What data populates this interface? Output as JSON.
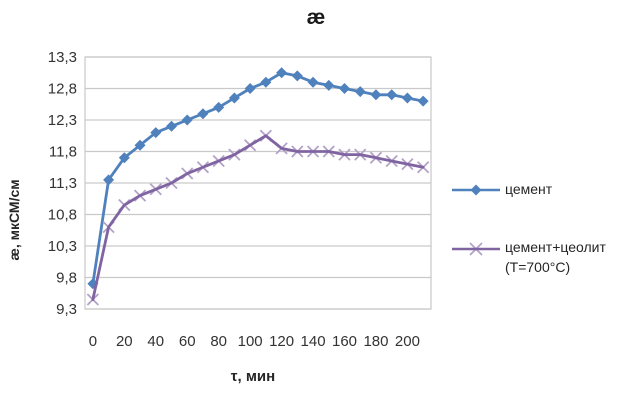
{
  "title": "æ",
  "chart_data": {
    "type": "line",
    "title": "æ",
    "grid": true,
    "legend_position": "right",
    "x_axis": {
      "title": "τ, мин",
      "categories": [
        0,
        10,
        20,
        30,
        40,
        50,
        60,
        70,
        80,
        90,
        100,
        110,
        120,
        130,
        140,
        150,
        160,
        170,
        180,
        190,
        200,
        210
      ],
      "tick_labels": [
        "0",
        "20",
        "40",
        "60",
        "80",
        "100",
        "120",
        "140",
        "160",
        "180",
        "200"
      ],
      "label_every_n_categories": 2
    },
    "y_axis": {
      "title": "æ, мкСМ/см",
      "min": 9.3,
      "max": 13.3,
      "step": 0.5,
      "tick_labels": [
        "9,3",
        "9,8",
        "10,3",
        "10,8",
        "11,3",
        "11,8",
        "12,3",
        "12,8",
        "13,3"
      ]
    },
    "series": [
      {
        "name": "цемент",
        "marker": "diamond",
        "color": "#4F81BD",
        "values": [
          9.7,
          11.35,
          11.7,
          11.9,
          12.1,
          12.2,
          12.3,
          12.4,
          12.5,
          12.65,
          12.8,
          12.9,
          13.05,
          13.0,
          12.9,
          12.85,
          12.8,
          12.75,
          12.7,
          12.7,
          12.65,
          12.6
        ]
      },
      {
        "name": "цемент+цеолит (Т=700°С)",
        "marker": "x",
        "color": "#8064A2",
        "marker_color": "#B3A2C7",
        "values": [
          9.45,
          10.6,
          10.95,
          11.1,
          11.2,
          11.3,
          11.45,
          11.55,
          11.65,
          11.75,
          11.9,
          12.05,
          11.85,
          11.8,
          11.8,
          11.8,
          11.75,
          11.75,
          11.7,
          11.65,
          11.6,
          11.55
        ]
      }
    ]
  },
  "legend": {
    "items": [
      {
        "label": "цемент"
      },
      {
        "label_line1": "цемент+цеолит",
        "label_line2": "(Т=700°С)"
      }
    ]
  },
  "colors": {
    "gridline": "#C9C9C9",
    "tick_text": "#333333",
    "title_text": "#1a1a1a"
  }
}
